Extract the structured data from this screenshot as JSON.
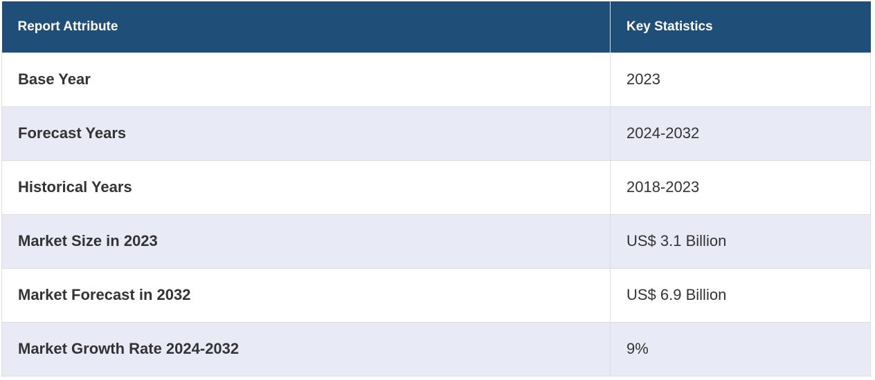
{
  "table": {
    "headers": [
      "Report Attribute",
      "Key Statistics"
    ],
    "rows": [
      {
        "attribute": "Base Year",
        "value": "2023"
      },
      {
        "attribute": "Forecast Years",
        "value": "2024-2032"
      },
      {
        "attribute": "Historical Years",
        "value": "2018-2023"
      },
      {
        "attribute": "Market Size in 2023",
        "value": "US$ 3.1 Billion"
      },
      {
        "attribute": "Market Forecast in 2032",
        "value": "US$ 6.9 Billion"
      },
      {
        "attribute": "Market Growth Rate 2024-2032",
        "value": "9%"
      }
    ]
  },
  "colors": {
    "header_bg": "#1f4e79",
    "header_text": "#ffffff",
    "row_alt_bg": "#e8eaf6",
    "row_bg": "#ffffff",
    "body_text": "#333333"
  }
}
